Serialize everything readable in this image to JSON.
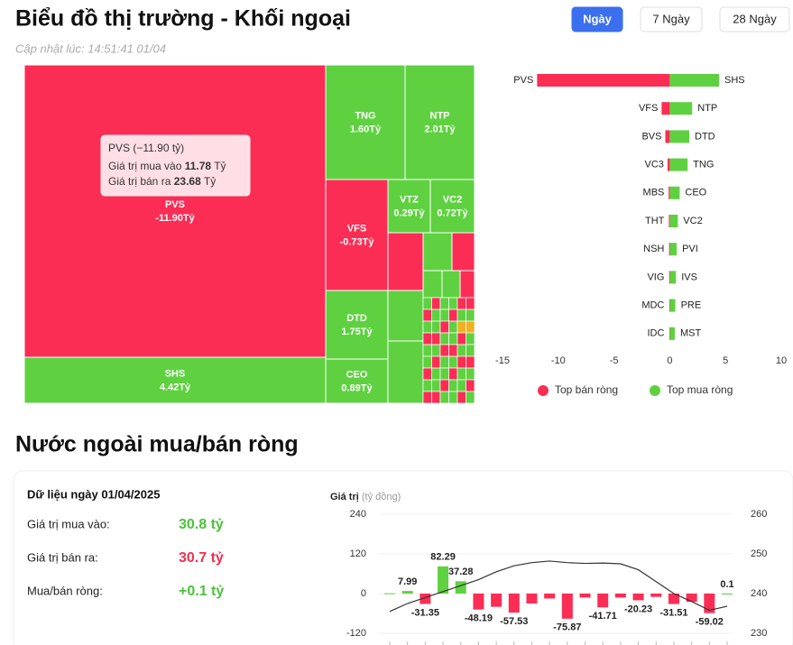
{
  "header": {
    "title": "Biểu đồ thị trường - Khối ngoại",
    "updated": "Cập nhật lúc: 14:51:41 01/04",
    "buttons": [
      "Ngày",
      "7 Ngày",
      "28 Ngày"
    ]
  },
  "chart_data": [
    {
      "type": "treemap",
      "categories": [
        "PVS",
        "SHS",
        "TNG",
        "NTP",
        "VFS",
        "VTZ",
        "VC2",
        "DTD",
        "CEO"
      ],
      "values": [
        -11.9,
        4.42,
        1.6,
        2.01,
        -0.73,
        0.29,
        0.72,
        1.75,
        0.89
      ],
      "value_labels": [
        "-11.90Tỷ",
        "4.42Tỷ",
        "1.60Tỷ",
        "2.01Tỷ",
        "-0.73Tỷ",
        "0.29Tỷ",
        "0.72Tỷ",
        "1.75Tỷ",
        "0.89Tỷ"
      ],
      "colors": {
        "positive": "#5fd141",
        "negative": "#fb2d55"
      },
      "tooltip": {
        "title": "PVS (−11.90 tỷ)",
        "rows": [
          {
            "label": "Giá trị mua vào",
            "value": 11.78,
            "unit": "Tỷ"
          },
          {
            "label": "Giá trị bán ra",
            "value": 23.68,
            "unit": "Tỷ"
          }
        ]
      }
    },
    {
      "type": "diverging-bar",
      "xlim": [
        -15,
        10
      ],
      "xticks": [
        -15,
        -10,
        -5,
        0,
        5,
        10
      ],
      "legend": "bottom",
      "series": [
        {
          "name": "Top bán ròng",
          "color": "#fb2d55",
          "labels": [
            "PVS",
            "VFS",
            "BVS",
            "VC3",
            "MBS",
            "THT",
            "NSH",
            "VIG",
            "MDC",
            "IDC"
          ],
          "values": [
            -11.9,
            -0.73,
            -0.4,
            -0.2,
            -0.1,
            -0.08,
            -0.06,
            -0.05,
            -0.04,
            -0.03
          ]
        },
        {
          "name": "Top mua ròng",
          "color": "#5fd141",
          "labels": [
            "SHS",
            "NTP",
            "DTD",
            "TNG",
            "CEO",
            "VC2",
            "PVI",
            "IVS",
            "PRE",
            "MST"
          ],
          "values": [
            4.42,
            2.01,
            1.75,
            1.6,
            0.89,
            0.72,
            0.62,
            0.55,
            0.5,
            0.45
          ]
        }
      ]
    },
    {
      "type": "combo",
      "title": "Giá trị",
      "subtitle": "(tỷ đồng)",
      "ylim": [
        -120,
        240
      ],
      "yticks": [
        -120,
        0,
        120,
        240
      ],
      "y2lim": [
        230,
        260
      ],
      "y2ticks": [
        230,
        240,
        250,
        260
      ],
      "series": [
        {
          "type": "bar",
          "colors": {
            "positive": "#5fd141",
            "negative": "#fb2d55"
          },
          "values": [
            1,
            7.99,
            -31.35,
            82.29,
            37.28,
            -48.19,
            -40,
            -57.53,
            -30,
            -15,
            -75.87,
            -12,
            -41.71,
            -12,
            -20.23,
            -10,
            -31.51,
            -25,
            -59.02,
            0.1
          ],
          "value_labels": [
            null,
            "7.99",
            "-31.35",
            "82.29",
            "37.28",
            "-48.19",
            null,
            "-57.53",
            null,
            null,
            "-75.87",
            null,
            "-41.71",
            null,
            "-20.23",
            null,
            "-31.51",
            null,
            "-59.02",
            "0.1"
          ]
        },
        {
          "type": "line",
          "axis": "y2",
          "color": "#333333",
          "values": [
            235.5,
            237.5,
            239,
            240.5,
            242,
            243.5,
            245.5,
            247,
            247.8,
            248.2,
            247.8,
            247.6,
            247.7,
            247.5,
            246,
            243,
            240,
            238,
            235.8,
            236.8
          ]
        }
      ]
    }
  ],
  "summary": {
    "title": "Nước ngoài mua/bán ròng",
    "date": "Dữ liệu ngày 01/04/2025",
    "rows": [
      {
        "label": "Giá trị mua vào:",
        "value": "30.8 tỷ",
        "color": "#4cc23a"
      },
      {
        "label": "Giá trị bán ra:",
        "value": "30.7 tỷ",
        "color": "#f0304f"
      },
      {
        "label": "Mua/bán ròng:",
        "value": "+0.1 tỷ",
        "color": "#4cc23a"
      }
    ]
  }
}
